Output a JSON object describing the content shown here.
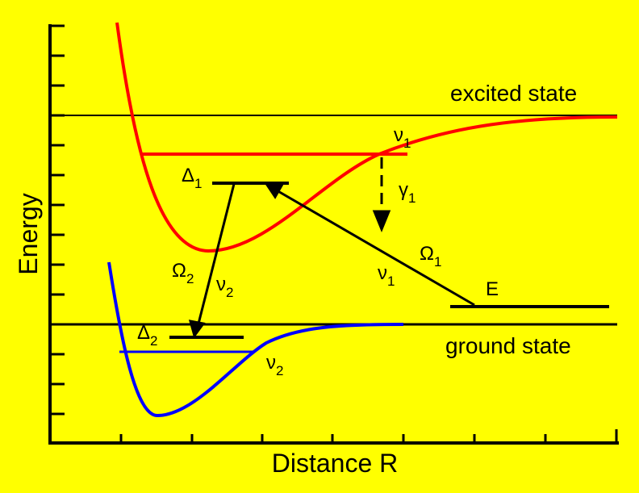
{
  "axes": {
    "y_label": "Energy",
    "x_label": "Distance R"
  },
  "states": {
    "excited": "excited state",
    "ground": "ground state"
  },
  "labels": [
    {
      "symbol": "Δ",
      "subscript": "1"
    },
    {
      "symbol": "ν",
      "subscript": "1"
    },
    {
      "symbol": "γ",
      "subscript": "1"
    },
    {
      "symbol": "Ω",
      "subscript": "2"
    },
    {
      "symbol": "ν",
      "subscript": "2"
    },
    {
      "symbol": "Ω",
      "subscript": "1"
    },
    {
      "symbol": "ν",
      "subscript": "1"
    },
    {
      "symbol": "E"
    },
    {
      "symbol": "Δ",
      "subscript": "2"
    },
    {
      "symbol": "ν",
      "subscript": "2"
    }
  ]
}
